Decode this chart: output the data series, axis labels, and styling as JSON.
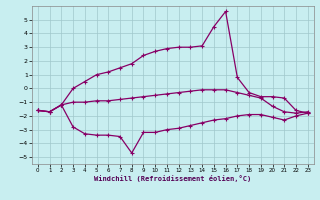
{
  "xlabel": "Windchill (Refroidissement éolien,°C)",
  "background_color": "#c8eef0",
  "grid_color": "#a0c8cc",
  "line_color": "#880066",
  "xlim": [
    -0.5,
    23.5
  ],
  "ylim": [
    -5.5,
    6.0
  ],
  "xticks": [
    0,
    1,
    2,
    3,
    4,
    5,
    6,
    7,
    8,
    9,
    10,
    11,
    12,
    13,
    14,
    15,
    16,
    17,
    18,
    19,
    20,
    21,
    22,
    23
  ],
  "yticks": [
    -5,
    -4,
    -3,
    -2,
    -1,
    0,
    1,
    2,
    3,
    4,
    5
  ],
  "series1_x": [
    0,
    1,
    2,
    3,
    4,
    5,
    6,
    7,
    8,
    9,
    10,
    11,
    12,
    13,
    14,
    15,
    16,
    17,
    18,
    19,
    20,
    21,
    22,
    23
  ],
  "series1_y": [
    -1.6,
    -1.7,
    -1.2,
    -1.0,
    -1.0,
    -0.9,
    -0.9,
    -0.8,
    -0.7,
    -0.6,
    -0.5,
    -0.4,
    -0.3,
    -0.2,
    -0.1,
    -0.1,
    -0.1,
    -0.3,
    -0.5,
    -0.7,
    -1.3,
    -1.7,
    -1.8,
    -1.7
  ],
  "series2_x": [
    0,
    1,
    2,
    3,
    4,
    5,
    6,
    7,
    8,
    9,
    10,
    11,
    12,
    13,
    14,
    15,
    16,
    17,
    18,
    19,
    20,
    21,
    22,
    23
  ],
  "series2_y": [
    -1.6,
    -1.7,
    -1.2,
    -2.8,
    -3.3,
    -3.4,
    -3.4,
    -3.5,
    -4.7,
    -3.2,
    -3.2,
    -3.0,
    -2.9,
    -2.7,
    -2.5,
    -2.3,
    -2.2,
    -2.0,
    -1.9,
    -1.9,
    -2.1,
    -2.3,
    -2.0,
    -1.8
  ],
  "series3_x": [
    0,
    1,
    2,
    3,
    4,
    5,
    6,
    7,
    8,
    9,
    10,
    11,
    12,
    13,
    14,
    15,
    16,
    17,
    18,
    19,
    20,
    21,
    22,
    23
  ],
  "series3_y": [
    -1.6,
    -1.7,
    -1.2,
    0.0,
    0.5,
    1.0,
    1.2,
    1.5,
    1.8,
    2.4,
    2.7,
    2.9,
    3.0,
    3.0,
    3.1,
    4.5,
    5.6,
    0.8,
    -0.3,
    -0.6,
    -0.6,
    -0.7,
    -1.6,
    -1.8
  ]
}
